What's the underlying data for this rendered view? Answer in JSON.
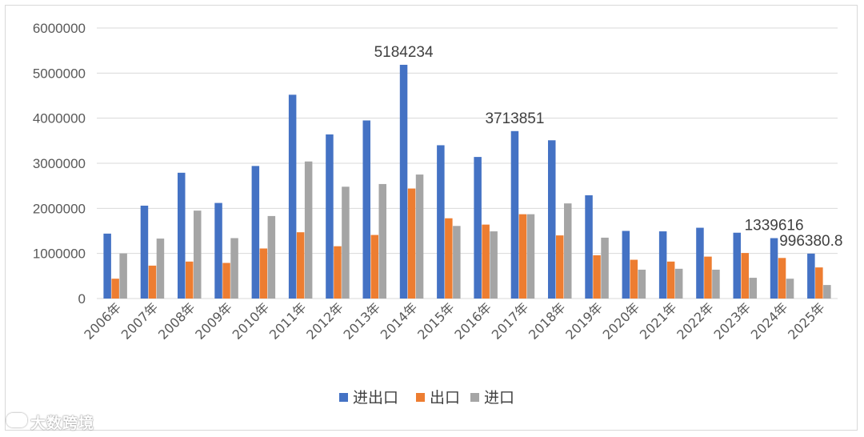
{
  "chart_data": {
    "type": "bar",
    "categories": [
      "2006年",
      "2007年",
      "2008年",
      "2009年",
      "2010年",
      "2011年",
      "2012年",
      "2013年",
      "2014年",
      "2015年",
      "2016年",
      "2017年",
      "2018年",
      "2019年",
      "2020年",
      "2021年",
      "2022年",
      "2023年",
      "2024年",
      "2025年"
    ],
    "series": [
      {
        "name": "进出口",
        "color": "#4472C4",
        "values": [
          1440000,
          2060000,
          2790000,
          2120000,
          2940000,
          4520000,
          3640000,
          3950000,
          5184234,
          3400000,
          3140000,
          3713851,
          3510000,
          2290000,
          1500000,
          1490000,
          1570000,
          1460000,
          1339616,
          996380.8
        ]
      },
      {
        "name": "出口",
        "color": "#ED7D31",
        "values": [
          440000,
          730000,
          820000,
          790000,
          1110000,
          1470000,
          1160000,
          1410000,
          2440000,
          1780000,
          1640000,
          1870000,
          1400000,
          960000,
          860000,
          820000,
          930000,
          1010000,
          900000,
          690000
        ]
      },
      {
        "name": "进口",
        "color": "#A5A5A5",
        "values": [
          1000000,
          1330000,
          1950000,
          1340000,
          1830000,
          3040000,
          2480000,
          2540000,
          2750000,
          1610000,
          1490000,
          1870000,
          2110000,
          1350000,
          640000,
          660000,
          640000,
          460000,
          440000,
          300000
        ]
      }
    ],
    "yticks": [
      "0",
      "1000000",
      "2000000",
      "3000000",
      "4000000",
      "5000000",
      "6000000"
    ],
    "ylim": [
      0,
      6000000
    ],
    "data_labels": [
      {
        "series": 0,
        "index": 8,
        "text": "5184234"
      },
      {
        "series": 0,
        "index": 11,
        "text": "3713851"
      },
      {
        "series": 0,
        "index": 18,
        "text": "1339616"
      },
      {
        "series": 0,
        "index": 19,
        "text": "996380.8"
      }
    ],
    "grid": true,
    "legend_position": "bottom"
  },
  "watermark": {
    "text": "大数跨境"
  }
}
